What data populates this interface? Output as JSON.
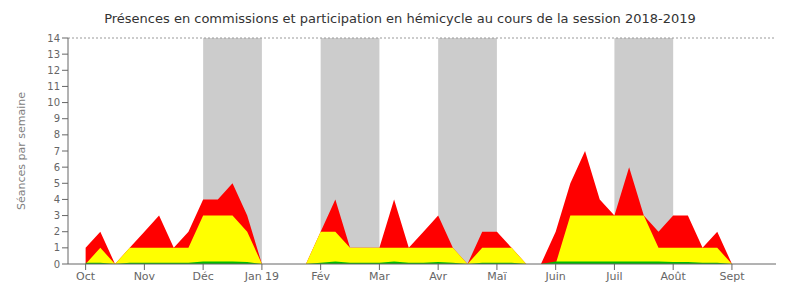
{
  "chart_data": {
    "type": "area",
    "title": "Présences en commissions et participation en hémicycle au cours de la session 2018-2019",
    "ylabel": "Séances par semaine",
    "x": [
      0,
      0.25,
      0.5,
      0.75,
      1,
      1.25,
      1.5,
      1.75,
      2,
      2.25,
      2.5,
      2.75,
      3,
      3.25,
      3.5,
      3.75,
      4,
      4.25,
      4.5,
      4.75,
      5,
      5.25,
      5.5,
      5.75,
      6,
      6.25,
      6.5,
      6.75,
      7,
      7.25,
      7.5,
      7.75,
      8,
      8.25,
      8.5,
      8.75,
      9,
      9.25,
      9.5,
      9.75,
      10,
      10.25,
      10.5,
      10.75,
      11,
      11.25,
      11.5,
      11.75
    ],
    "series": [
      {
        "color": "#ff0000",
        "values": [
          1,
          2,
          0,
          1,
          2,
          3,
          1,
          2,
          4,
          4,
          5,
          3,
          0,
          0,
          0,
          0,
          2,
          4,
          1,
          1,
          1,
          4,
          1,
          2,
          3,
          1,
          0,
          2,
          2,
          1,
          0,
          0,
          2,
          5,
          7,
          4,
          3,
          6,
          3,
          2,
          3,
          3,
          1,
          2,
          0,
          0,
          0,
          0
        ]
      },
      {
        "color": "#ffff00",
        "values": [
          0,
          1,
          0,
          1,
          1,
          1,
          1,
          1,
          3,
          3,
          3,
          2,
          0,
          0,
          0,
          0,
          2,
          2,
          1,
          1,
          1,
          1,
          1,
          1,
          1,
          1,
          0,
          1,
          1,
          1,
          0,
          0,
          0,
          3,
          3,
          3,
          3,
          3,
          3,
          1,
          1,
          1,
          1,
          1,
          0,
          0,
          0,
          0
        ]
      },
      {
        "color": "#00bb00",
        "values": [
          0.08,
          0.08,
          0,
          0.08,
          0.08,
          0.08,
          0.08,
          0.08,
          0.15,
          0.15,
          0.15,
          0.12,
          0,
          0,
          0,
          0,
          0.08,
          0.15,
          0.08,
          0.08,
          0.08,
          0.15,
          0.08,
          0.08,
          0.12,
          0.08,
          0,
          0.08,
          0.08,
          0.08,
          0,
          0,
          0.15,
          0.15,
          0.15,
          0.15,
          0.15,
          0.15,
          0.15,
          0.15,
          0.12,
          0.12,
          0.08,
          0.08,
          0,
          0,
          0,
          0
        ]
      }
    ],
    "xlim": [
      -0.3,
      11.75
    ],
    "xticks": [
      {
        "value": 0,
        "label": "Oct"
      },
      {
        "value": 1,
        "label": "Nov"
      },
      {
        "value": 2,
        "label": "Déc"
      },
      {
        "value": 3,
        "label": "Jan 19"
      },
      {
        "value": 4,
        "label": "Fév"
      },
      {
        "value": 5,
        "label": "Mar"
      },
      {
        "value": 6,
        "label": "Avr"
      },
      {
        "value": 7,
        "label": "Maï"
      },
      {
        "value": 8,
        "label": "Juin"
      },
      {
        "value": 9,
        "label": "Juil"
      },
      {
        "value": 10,
        "label": "Août"
      },
      {
        "value": 11,
        "label": "Sept"
      }
    ],
    "ylim": [
      0,
      14
    ],
    "yticks": [
      0,
      1,
      2,
      3,
      4,
      5,
      6,
      7,
      8,
      9,
      10,
      11,
      12,
      13,
      14
    ],
    "bands": [
      {
        "x": [
          2.0,
          3.0
        ],
        "color": "#bbbbbb"
      },
      {
        "x": [
          4.0,
          5.0
        ],
        "color": "#bbbbbb"
      },
      {
        "x": [
          6.0,
          7.0
        ],
        "color": "#bbbbbb"
      },
      {
        "x": [
          9.0,
          10.0
        ],
        "color": "#bbbbbb"
      }
    ],
    "reference_lines": [
      {
        "y": 14,
        "color": "#999999",
        "line_style": "dotted"
      }
    ],
    "grid": false
  }
}
